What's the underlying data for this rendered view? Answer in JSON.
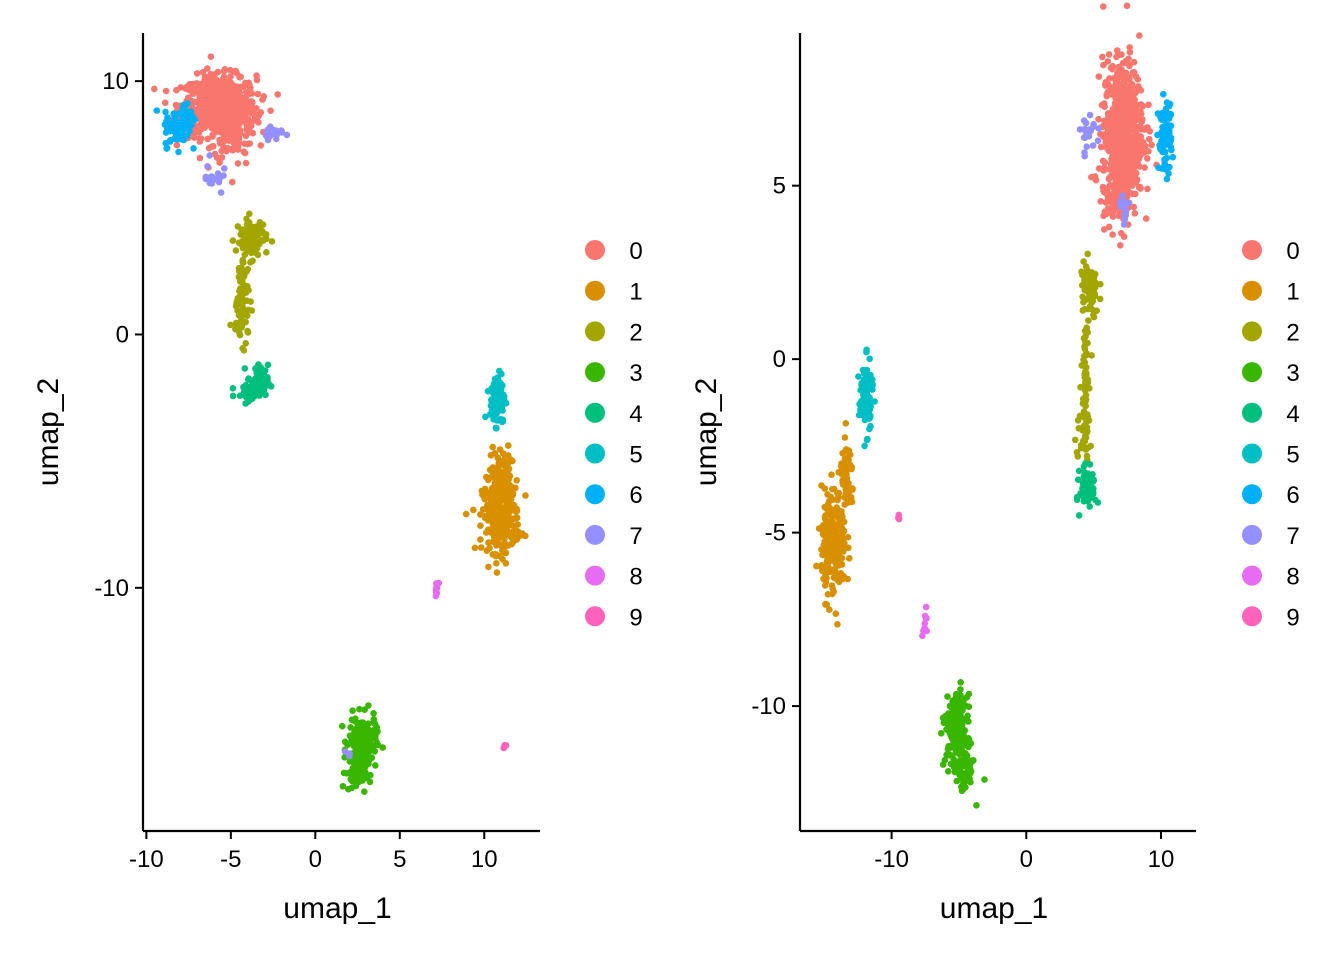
{
  "chart_data": [
    {
      "type": "scatter",
      "xlabel": "umap_1",
      "ylabel": "umap_2",
      "xlim": [
        -10.2,
        13.3
      ],
      "ylim": [
        -19.6,
        11.9
      ],
      "xticks": [
        -10,
        -5,
        0,
        5,
        10
      ],
      "yticks": [
        -10,
        0,
        10
      ],
      "grid": false,
      "legend_position": "right",
      "legend": [
        "0",
        "1",
        "2",
        "3",
        "4",
        "5",
        "6",
        "7",
        "8",
        "9"
      ],
      "series": [
        {
          "name": "0",
          "color": "#F8766D",
          "clusters": [
            {
              "cx": -5.7,
              "cy": 9.0,
              "sx": 1.1,
              "sy": 0.6,
              "n": 650
            },
            {
              "cx": -4.8,
              "cy": 8.3,
              "sx": 0.6,
              "sy": 0.8,
              "n": 120
            }
          ]
        },
        {
          "name": "1",
          "color": "#D89000",
          "clusters": [
            {
              "cx": 11.0,
              "cy": -5.6,
              "sx": 0.3,
              "sy": 0.6,
              "n": 80
            },
            {
              "cx": 11.0,
              "cy": -7.2,
              "sx": 0.55,
              "sy": 0.7,
              "n": 260
            }
          ]
        },
        {
          "name": "2",
          "color": "#A3A500",
          "clusters": [
            {
              "cx": -3.8,
              "cy": 3.8,
              "sx": 0.45,
              "sy": 0.4,
              "n": 80
            },
            {
              "cx": -4.3,
              "cy": 1.6,
              "sx": 0.2,
              "sy": 0.9,
              "n": 60
            },
            {
              "cx": -4.4,
              "cy": 0.4,
              "sx": 0.25,
              "sy": 0.3,
              "n": 25
            }
          ]
        },
        {
          "name": "3",
          "color": "#39B600",
          "clusters": [
            {
              "cx": 2.8,
              "cy": -16.1,
              "sx": 0.4,
              "sy": 0.5,
              "n": 200
            },
            {
              "cx": 2.4,
              "cy": -17.3,
              "sx": 0.3,
              "sy": 0.35,
              "n": 60
            }
          ]
        },
        {
          "name": "4",
          "color": "#00BF7D",
          "clusters": [
            {
              "cx": -3.4,
              "cy": -1.9,
              "sx": 0.3,
              "sy": 0.35,
              "n": 70
            },
            {
              "cx": -3.9,
              "cy": -2.4,
              "sx": 0.4,
              "sy": 0.15,
              "n": 20
            }
          ]
        },
        {
          "name": "5",
          "color": "#00BFC4",
          "clusters": [
            {
              "cx": 10.8,
              "cy": -2.5,
              "sx": 0.22,
              "sy": 0.5,
              "n": 110
            }
          ]
        },
        {
          "name": "6",
          "color": "#00B0F6",
          "clusters": [
            {
              "cx": -8.2,
              "cy": 8.1,
              "sx": 0.35,
              "sy": 0.35,
              "n": 70
            },
            {
              "cx": -7.6,
              "cy": 8.6,
              "sx": 0.3,
              "sy": 0.3,
              "n": 30
            }
          ]
        },
        {
          "name": "7",
          "color": "#9590FF",
          "clusters": [
            {
              "cx": -2.5,
              "cy": 8.0,
              "sx": 0.3,
              "sy": 0.15,
              "n": 25
            },
            {
              "cx": -6.1,
              "cy": 6.2,
              "sx": 0.3,
              "sy": 0.35,
              "n": 18
            },
            {
              "cx": 2.0,
              "cy": -16.5,
              "sx": 0.1,
              "sy": 0.1,
              "n": 3
            }
          ]
        },
        {
          "name": "8",
          "color": "#E76BF3",
          "clusters": [
            {
              "cx": 7.2,
              "cy": -10.0,
              "sx": 0.1,
              "sy": 0.12,
              "n": 8
            }
          ]
        },
        {
          "name": "9",
          "color": "#FF62BC",
          "clusters": [
            {
              "cx": 11.2,
              "cy": -16.2,
              "sx": 0.06,
              "sy": 0.06,
              "n": 4
            }
          ]
        }
      ]
    },
    {
      "type": "scatter",
      "xlabel": "umap_1",
      "ylabel": "umap_2",
      "xlim": [
        -16.8,
        12.6
      ],
      "ylim": [
        -13.6,
        9.4
      ],
      "xticks": [
        -10,
        0,
        10
      ],
      "yticks": [
        -10,
        -5,
        0,
        5
      ],
      "grid": false,
      "legend_position": "right",
      "legend": [
        "0",
        "1",
        "2",
        "3",
        "4",
        "5",
        "6",
        "7",
        "8",
        "9"
      ],
      "series": [
        {
          "name": "0",
          "color": "#F8766D",
          "clusters": [
            {
              "cx": 7.2,
              "cy": 6.6,
              "sx": 0.75,
              "sy": 1.0,
              "n": 600
            },
            {
              "cx": 6.6,
              "cy": 4.8,
              "sx": 0.6,
              "sy": 0.5,
              "n": 100
            }
          ]
        },
        {
          "name": "1",
          "color": "#D89000",
          "clusters": [
            {
              "cx": -14.3,
              "cy": -5.3,
              "sx": 0.45,
              "sy": 0.75,
              "n": 230
            },
            {
              "cx": -13.3,
              "cy": -3.5,
              "sx": 0.25,
              "sy": 0.5,
              "n": 60
            }
          ]
        },
        {
          "name": "2",
          "color": "#A3A500",
          "clusters": [
            {
              "cx": 4.7,
              "cy": 2.0,
              "sx": 0.35,
              "sy": 0.4,
              "n": 70
            },
            {
              "cx": 4.4,
              "cy": -0.5,
              "sx": 0.15,
              "sy": 1.0,
              "n": 70
            },
            {
              "cx": 4.0,
              "cy": -2.4,
              "sx": 0.3,
              "sy": 0.25,
              "n": 15
            }
          ]
        },
        {
          "name": "3",
          "color": "#39B600",
          "clusters": [
            {
              "cx": -5.2,
              "cy": -10.7,
              "sx": 0.4,
              "sy": 0.5,
              "n": 200
            },
            {
              "cx": -4.6,
              "cy": -11.8,
              "sx": 0.35,
              "sy": 0.35,
              "n": 60
            }
          ]
        },
        {
          "name": "4",
          "color": "#00BF7D",
          "clusters": [
            {
              "cx": 4.6,
              "cy": -3.7,
              "sx": 0.3,
              "sy": 0.3,
              "n": 80
            }
          ]
        },
        {
          "name": "5",
          "color": "#00BFC4",
          "clusters": [
            {
              "cx": -11.9,
              "cy": -1.1,
              "sx": 0.25,
              "sy": 0.5,
              "n": 90
            }
          ]
        },
        {
          "name": "6",
          "color": "#00B0F6",
          "clusters": [
            {
              "cx": 10.3,
              "cy": 6.4,
              "sx": 0.25,
              "sy": 0.5,
              "n": 80
            }
          ]
        },
        {
          "name": "7",
          "color": "#9590FF",
          "clusters": [
            {
              "cx": 4.6,
              "cy": 6.5,
              "sx": 0.3,
              "sy": 0.3,
              "n": 20
            },
            {
              "cx": 7.3,
              "cy": 4.2,
              "sx": 0.15,
              "sy": 0.25,
              "n": 12
            }
          ]
        },
        {
          "name": "8",
          "color": "#E76BF3",
          "clusters": [
            {
              "cx": -7.5,
              "cy": -7.7,
              "sx": 0.1,
              "sy": 0.25,
              "n": 10
            }
          ]
        },
        {
          "name": "9",
          "color": "#FF62BC",
          "clusters": [
            {
              "cx": -9.5,
              "cy": -4.6,
              "sx": 0.05,
              "sy": 0.05,
              "n": 4
            }
          ]
        }
      ]
    }
  ]
}
